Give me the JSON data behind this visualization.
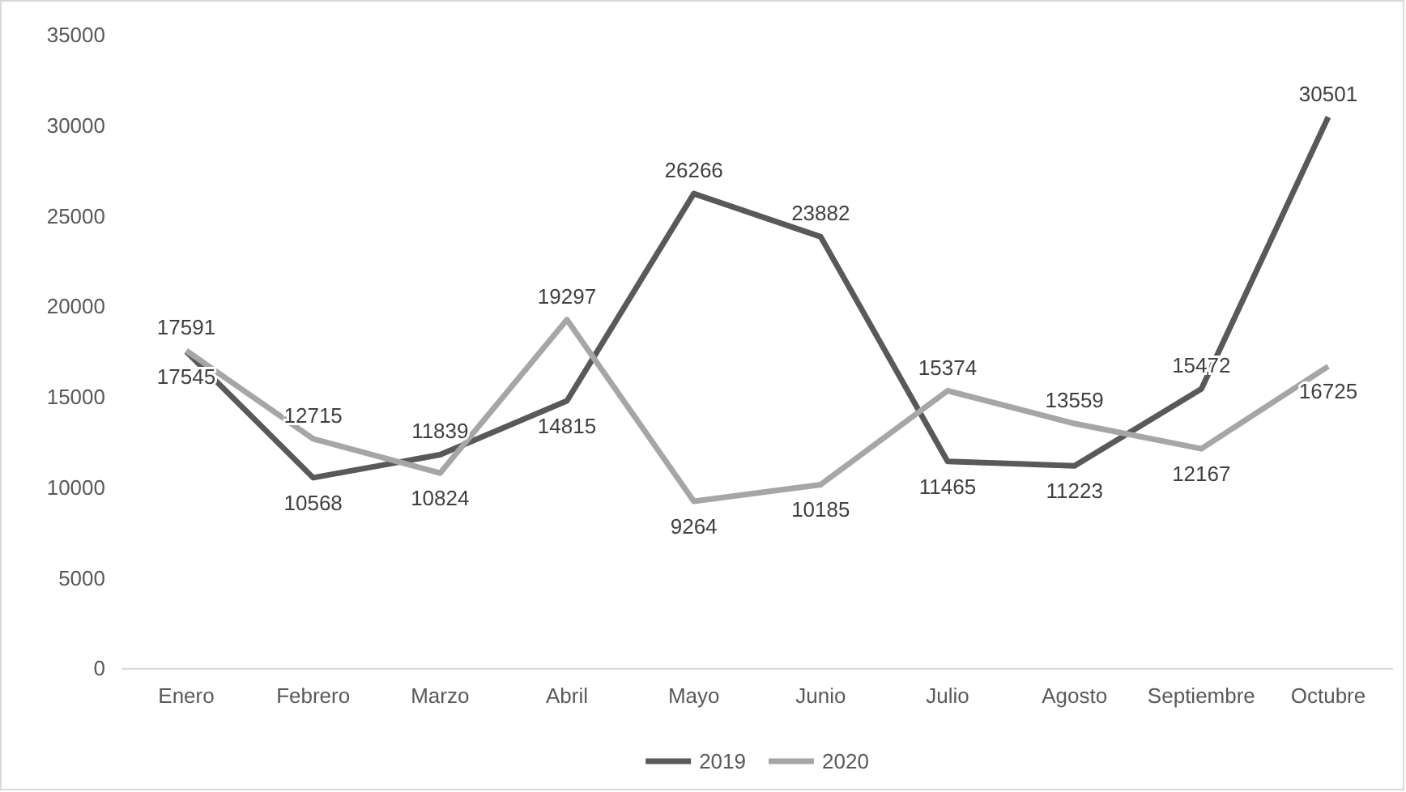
{
  "chart_data": {
    "type": "line",
    "categories": [
      "Enero",
      "Febrero",
      "Marzo",
      "Abril",
      "Mayo",
      "Junio",
      "Julio",
      "Agosto",
      "Septiembre",
      "Octubre"
    ],
    "series": [
      {
        "name": "2019",
        "color": "#595959",
        "values": [
          17545,
          10568,
          11839,
          14815,
          26266,
          23882,
          11465,
          11223,
          15472,
          30501
        ]
      },
      {
        "name": "2020",
        "color": "#a6a6a6",
        "values": [
          17591,
          12715,
          10824,
          19297,
          9264,
          10185,
          15374,
          13559,
          12167,
          16725
        ]
      }
    ],
    "ylim": [
      0,
      35000
    ],
    "yticks": [
      0,
      5000,
      10000,
      15000,
      20000,
      25000,
      30000,
      35000
    ],
    "grid": false,
    "legend": "bottom",
    "data_labels": true,
    "marker": "none",
    "line_style": "solid"
  }
}
